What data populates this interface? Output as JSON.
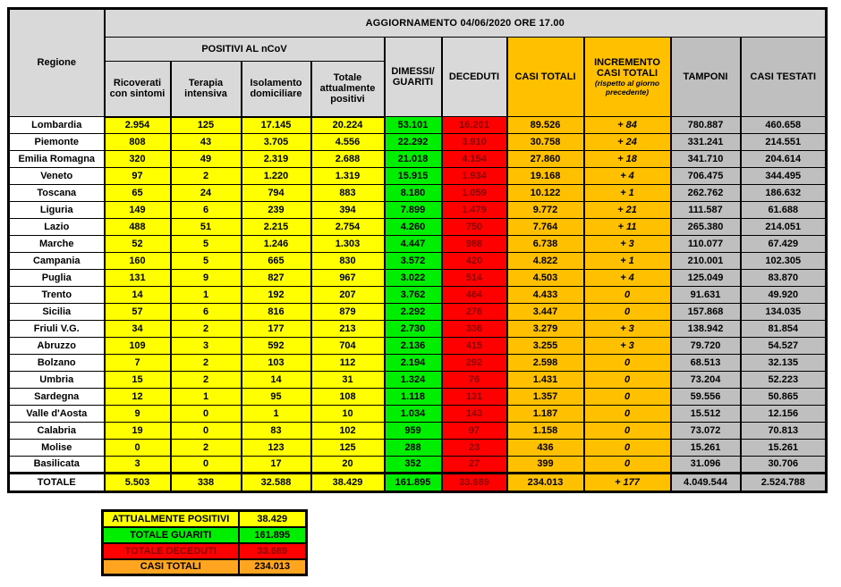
{
  "title": "AGGIORNAMENTO 04/06/2020 ORE 17.00",
  "table_headers": {
    "regione": "Regione",
    "positivi_group": "POSITIVI AL nCoV",
    "ricoverati": "Ricoverati con sintomi",
    "terapia": "Terapia intensiva",
    "isolamento": "Isolamento domiciliare",
    "totale_positivi": "Totale attualmente positivi",
    "dimessi": "DIMESSI/ GUARITI",
    "deceduti": "DECEDUTI",
    "casi_totali": "CASI TOTALI",
    "incremento_line1": "INCREMENTO",
    "incremento_line2": "CASI TOTALI",
    "incremento_note": "(rispetto al giorno precedente)",
    "tamponi": "TAMPONI",
    "casi_testati": "CASI TESTATI"
  },
  "chart_data": {
    "type": "table",
    "title": "AGGIORNAMENTO 04/06/2020 ORE 17.00",
    "columns": [
      "Regione",
      "Ricoverati con sintomi",
      "Terapia intensiva",
      "Isolamento domiciliare",
      "Totale attualmente positivi",
      "DIMESSI/GUARITI",
      "DECEDUTI",
      "CASI TOTALI",
      "INCREMENTO CASI TOTALI (rispetto al giorno precedente)",
      "TAMPONI",
      "CASI TESTATI"
    ],
    "rows": [
      [
        "Lombardia",
        "2.954",
        "125",
        "17.145",
        "20.224",
        "53.101",
        "16.201",
        "89.526",
        "+ 84",
        "780.887",
        "460.658"
      ],
      [
        "Piemonte",
        "808",
        "43",
        "3.705",
        "4.556",
        "22.292",
        "3.910",
        "30.758",
        "+ 24",
        "331.241",
        "214.551"
      ],
      [
        "Emilia Romagna",
        "320",
        "49",
        "2.319",
        "2.688",
        "21.018",
        "4.154",
        "27.860",
        "+ 18",
        "341.710",
        "204.614"
      ],
      [
        "Veneto",
        "97",
        "2",
        "1.220",
        "1.319",
        "15.915",
        "1.934",
        "19.168",
        "+ 4",
        "706.475",
        "344.495"
      ],
      [
        "Toscana",
        "65",
        "24",
        "794",
        "883",
        "8.180",
        "1.059",
        "10.122",
        "+ 1",
        "262.762",
        "186.632"
      ],
      [
        "Liguria",
        "149",
        "6",
        "239",
        "394",
        "7.899",
        "1.479",
        "9.772",
        "+ 21",
        "111.587",
        "61.688"
      ],
      [
        "Lazio",
        "488",
        "51",
        "2.215",
        "2.754",
        "4.260",
        "750",
        "7.764",
        "+ 11",
        "265.380",
        "214.051"
      ],
      [
        "Marche",
        "52",
        "5",
        "1.246",
        "1.303",
        "4.447",
        "988",
        "6.738",
        "+ 3",
        "110.077",
        "67.429"
      ],
      [
        "Campania",
        "160",
        "5",
        "665",
        "830",
        "3.572",
        "420",
        "4.822",
        "+ 1",
        "210.001",
        "102.305"
      ],
      [
        "Puglia",
        "131",
        "9",
        "827",
        "967",
        "3.022",
        "514",
        "4.503",
        "+ 4",
        "125.049",
        "83.870"
      ],
      [
        "Trento",
        "14",
        "1",
        "192",
        "207",
        "3.762",
        "464",
        "4.433",
        "0",
        "91.631",
        "49.920"
      ],
      [
        "Sicilia",
        "57",
        "6",
        "816",
        "879",
        "2.292",
        "276",
        "3.447",
        "0",
        "157.868",
        "134.035"
      ],
      [
        "Friuli V.G.",
        "34",
        "2",
        "177",
        "213",
        "2.730",
        "336",
        "3.279",
        "+ 3",
        "138.942",
        "81.854"
      ],
      [
        "Abruzzo",
        "109",
        "3",
        "592",
        "704",
        "2.136",
        "415",
        "3.255",
        "+ 3",
        "79.720",
        "54.527"
      ],
      [
        "Bolzano",
        "7",
        "2",
        "103",
        "112",
        "2.194",
        "292",
        "2.598",
        "0",
        "68.513",
        "32.135"
      ],
      [
        "Umbria",
        "15",
        "2",
        "14",
        "31",
        "1.324",
        "76",
        "1.431",
        "0",
        "73.204",
        "52.223"
      ],
      [
        "Sardegna",
        "12",
        "1",
        "95",
        "108",
        "1.118",
        "131",
        "1.357",
        "0",
        "59.556",
        "50.865"
      ],
      [
        "Valle d'Aosta",
        "9",
        "0",
        "1",
        "10",
        "1.034",
        "143",
        "1.187",
        "0",
        "15.512",
        "12.156"
      ],
      [
        "Calabria",
        "19",
        "0",
        "83",
        "102",
        "959",
        "97",
        "1.158",
        "0",
        "73.072",
        "70.813"
      ],
      [
        "Molise",
        "0",
        "2",
        "123",
        "125",
        "288",
        "23",
        "436",
        "0",
        "15.261",
        "15.261"
      ],
      [
        "Basilicata",
        "3",
        "0",
        "17",
        "20",
        "352",
        "27",
        "399",
        "0",
        "31.096",
        "30.706"
      ]
    ],
    "total_row": [
      "TOTALE",
      "5.503",
      "338",
      "32.588",
      "38.429",
      "161.895",
      "33.689",
      "234.013",
      "+ 177",
      "4.049.544",
      "2.524.788"
    ]
  },
  "legend": {
    "items": [
      {
        "label": "ATTUALMENTE POSITIVI",
        "value": "38.429"
      },
      {
        "label": "TOTALE GUARITI",
        "value": "161.895"
      },
      {
        "label": "TOTALE DECEDUTI",
        "value": "33.689"
      },
      {
        "label": "CASI TOTALI",
        "value": "234.013"
      }
    ]
  },
  "colors": {
    "positivi_yellow": "#FFFF00",
    "guariti_green": "#00EE00",
    "deceduti_red": "#FF0000",
    "deceduti_text": "#8B0000",
    "casi_totali_gold": "#FFC000",
    "legend_casi_totali_orange": "#FFA520",
    "header_light_gray": "#D9D9D9",
    "tamponi_gray": "#BFBFBF"
  }
}
